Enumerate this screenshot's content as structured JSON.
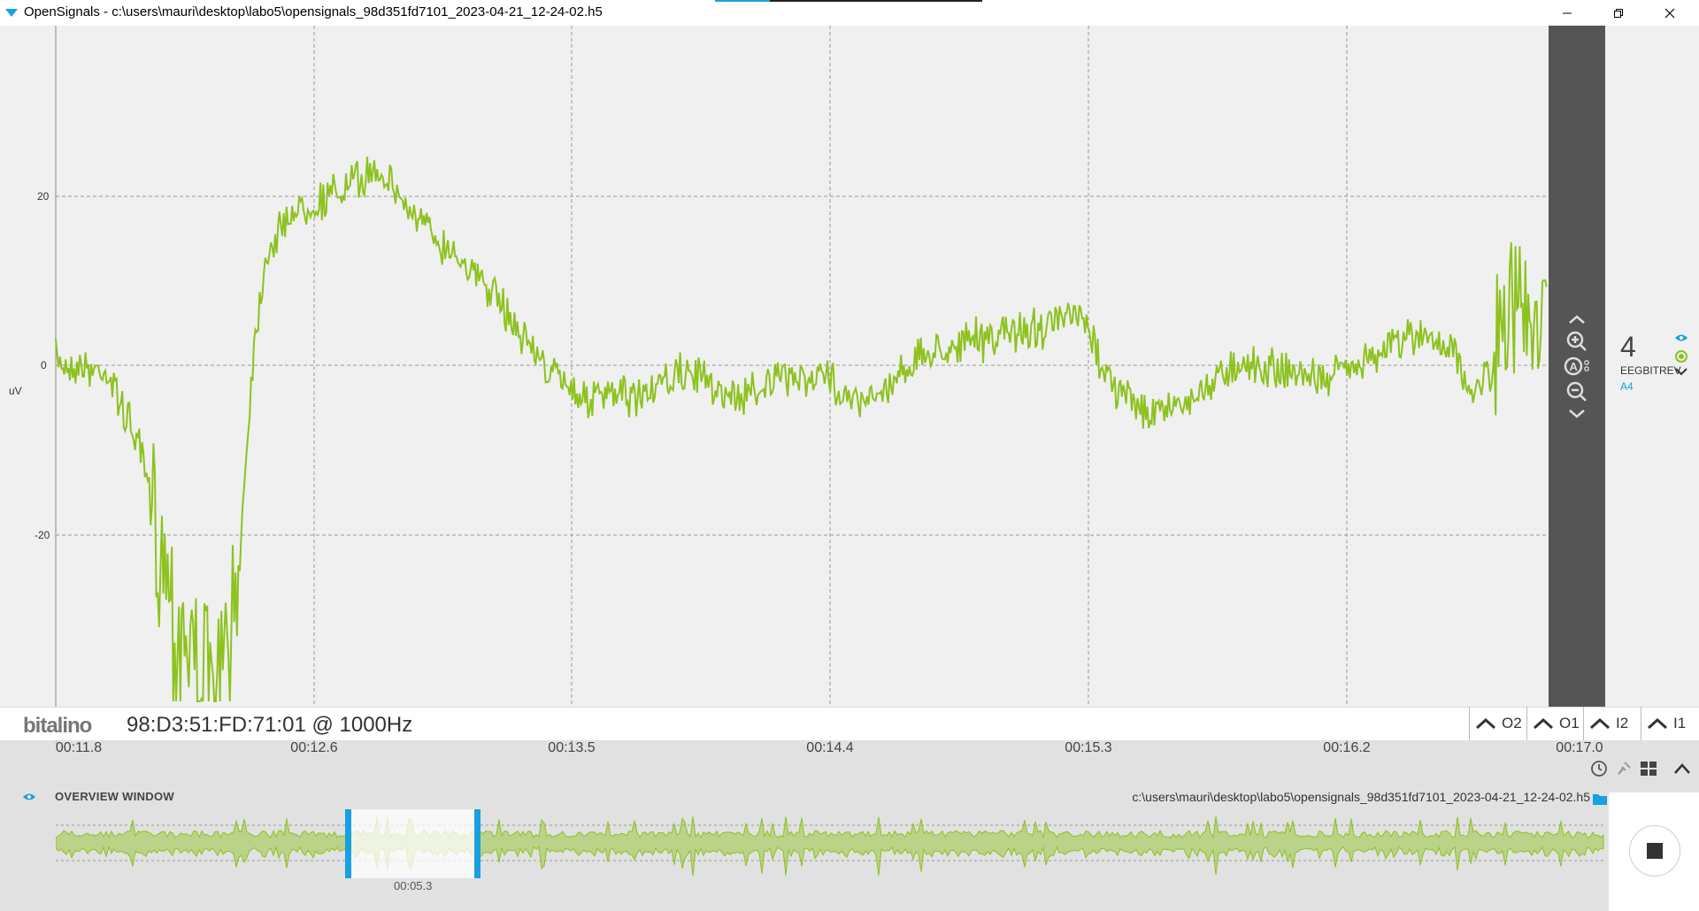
{
  "window": {
    "title": "OpenSignals - c:\\users\\mauri\\desktop\\labo5\\opensignals_98d351fd7101_2023-04-21_12-24-02.h5"
  },
  "plot": {
    "y_unit": "uV",
    "y_ticks": [
      "20",
      "0",
      "-20"
    ],
    "line_color": "#8dc21f"
  },
  "channel": {
    "number": "4",
    "name": "EEGBITREV",
    "port": "A4"
  },
  "device": {
    "logo": "bitalino",
    "id": "98:D3:51:FD:71:01 @ 1000Hz"
  },
  "channel_buttons": [
    {
      "label": "O2"
    },
    {
      "label": "O1"
    },
    {
      "label": "I2"
    },
    {
      "label": "I1"
    }
  ],
  "time_ticks": [
    "00:11.8",
    "00:12.6",
    "00:13.5",
    "00:14.4",
    "00:15.3",
    "00:16.2",
    "00:17.0"
  ],
  "overview": {
    "title": "OVERVIEW WINDOW",
    "file_path": "c:\\users\\mauri\\desktop\\labo5\\opensignals_98d351fd7101_2023-04-21_12-24-02.h5",
    "window_time": "00:05.3"
  },
  "colors": {
    "accent": "#1aa0e0",
    "signal": "#8dc21f",
    "sidepanel": "#555555"
  }
}
